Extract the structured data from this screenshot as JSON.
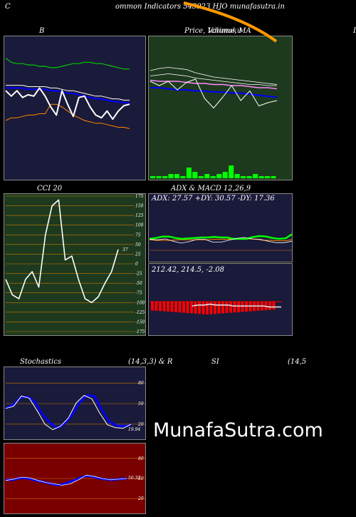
{
  "header": {
    "left_letter": "C",
    "title": "ommon  Indicators 543923 HJO munafasutra.in",
    "right_letter": "I"
  },
  "panels": {
    "bollinger": {
      "title": "B"
    },
    "price": {
      "title": "Price,  Volume,  MA",
      "overlap": "Ichimoku"
    },
    "cci": {
      "title": "CCI 20",
      "value_label": "37"
    },
    "adx": {
      "title": "ADX  & MACD 12,26,9",
      "adx_readout": "ADX: 27.57  +DY: 30.57 -DY: 17.36",
      "macd_readout": "212.42,  214.5,  -2.08"
    },
    "stoch": {
      "title_left": "Stochastics",
      "title_mid": "(14,3,3) & R",
      "title_right": "SI",
      "title_far": "(14,5",
      "value_label": "19.94"
    },
    "rsi": {
      "value_label": "50.32"
    }
  },
  "watermark": "MunafaSutra.com",
  "colors": {
    "navy_panel": "#1a1a3a",
    "green_panel": "#1e3a1e",
    "red_panel": "#7a0000",
    "grid_orange": "#c87800",
    "volume_green": "#00ff00",
    "rsi_blue": "#0000ff"
  },
  "chart_data": [
    {
      "type": "line",
      "name": "bollinger",
      "series": [
        {
          "values": [
            86,
            83,
            82,
            82,
            81,
            81,
            80,
            80,
            79,
            79,
            80,
            81,
            82,
            82,
            83,
            83,
            82,
            82,
            81,
            80,
            79,
            78,
            78
          ]
        },
        {
          "values": [
            66,
            66,
            66,
            66,
            65,
            65,
            65,
            65,
            64,
            64,
            63,
            62,
            62,
            61,
            60,
            59,
            58,
            58,
            57,
            56,
            56,
            55,
            55
          ]
        },
        {
          "values": [
            64,
            64,
            64,
            64,
            63,
            63,
            63,
            63,
            62,
            62,
            61,
            60,
            60,
            59,
            58,
            57,
            56,
            56,
            55,
            54,
            54,
            53,
            53
          ]
        },
        {
          "values": [
            40,
            42,
            42,
            43,
            44,
            44,
            45,
            45,
            52,
            52,
            50,
            47,
            44,
            42,
            40,
            39,
            38,
            38,
            37,
            36,
            35,
            35,
            34
          ]
        },
        {
          "values": [
            62,
            58,
            62,
            57,
            59,
            58,
            64,
            58,
            50,
            44,
            62,
            52,
            43,
            57,
            58,
            50,
            44,
            42,
            47,
            41,
            47,
            51,
            52
          ]
        }
      ]
    },
    {
      "type": "line",
      "name": "price",
      "series": [
        {
          "values": [
            74,
            76,
            77,
            76,
            75,
            72,
            70,
            68,
            67,
            66,
            65,
            64,
            63,
            62,
            61
          ]
        },
        {
          "values": [
            69,
            70,
            71,
            70,
            69,
            67,
            66,
            65,
            64,
            63,
            62,
            61,
            61,
            60,
            60
          ]
        },
        {
          "values": [
            65,
            64,
            64,
            64,
            63,
            62,
            62,
            61,
            61,
            60,
            60,
            59,
            58,
            58,
            57
          ]
        },
        {
          "values": [
            58,
            58,
            57,
            56,
            56,
            55,
            55,
            54,
            54,
            53,
            53,
            52,
            51,
            50,
            49
          ]
        },
        {
          "values": [
            64,
            60,
            64,
            56,
            63,
            66,
            48,
            39,
            49,
            60,
            46,
            55,
            41,
            44,
            46
          ]
        },
        {
          "values": [
            1,
            1,
            1,
            2,
            2,
            1,
            5,
            3,
            1,
            2,
            1,
            2,
            3,
            6,
            2,
            1,
            1,
            2,
            1,
            1,
            1
          ]
        }
      ]
    },
    {
      "type": "line",
      "name": "cci",
      "ylim": [
        -175,
        175
      ],
      "y_ticks": [
        175,
        150,
        125,
        100,
        75,
        50,
        25,
        0,
        -25,
        -50,
        -75,
        -100,
        -125,
        -150,
        -175
      ],
      "values": [
        -40,
        -80,
        -90,
        -40,
        -20,
        -60,
        75,
        150,
        165,
        10,
        20,
        -40,
        -90,
        -100,
        -85,
        -50,
        -20,
        37
      ]
    },
    {
      "type": "line",
      "name": "adx_macd",
      "series": [
        {
          "values": [
            45,
            44,
            44,
            44,
            45,
            45,
            45,
            45,
            45,
            46,
            46,
            46,
            47,
            47,
            47,
            46,
            44,
            44,
            43,
            43,
            45
          ]
        },
        {
          "values": [
            47,
            49,
            52,
            52,
            49,
            47,
            48,
            49,
            50,
            50,
            51,
            50,
            50,
            47,
            47,
            47,
            51,
            53,
            52,
            49,
            47,
            48,
            57
          ]
        },
        {
          "values": [
            46,
            45,
            47,
            42,
            38,
            41,
            46,
            46,
            40,
            40,
            44,
            48,
            50,
            47,
            46,
            42,
            39,
            39,
            42
          ]
        },
        {
          "values": [
            213,
            214,
            214,
            215,
            214,
            214,
            214,
            213,
            213,
            213,
            213,
            213,
            213,
            212,
            212,
            212
          ]
        }
      ]
    },
    {
      "type": "line",
      "name": "stochastics",
      "ylim": [
        0,
        100
      ],
      "y_ticks": [
        80,
        50,
        20
      ],
      "series": [
        {
          "values": [
            43,
            48,
            59,
            60,
            52,
            34,
            22,
            14,
            21,
            34,
            51,
            62,
            61,
            42,
            24,
            18,
            17,
            19
          ]
        },
        {
          "values": [
            43,
            46,
            61,
            58,
            40,
            20,
            12,
            17,
            29,
            51,
            62,
            57,
            36,
            19,
            15,
            14,
            20
          ]
        }
      ]
    },
    {
      "type": "line",
      "name": "rsi",
      "ylim": [
        0,
        100
      ],
      "y_ticks": [
        80,
        50,
        20
      ],
      "series": [
        {
          "values": [
            48,
            48,
            51,
            50,
            47,
            45,
            42,
            40,
            43,
            47,
            52,
            54,
            51,
            49,
            48,
            49,
            50
          ]
        },
        {
          "values": [
            47,
            49,
            52,
            51,
            47,
            44,
            42,
            40,
            42,
            48,
            55,
            53,
            50,
            48,
            49,
            50
          ]
        }
      ]
    }
  ]
}
